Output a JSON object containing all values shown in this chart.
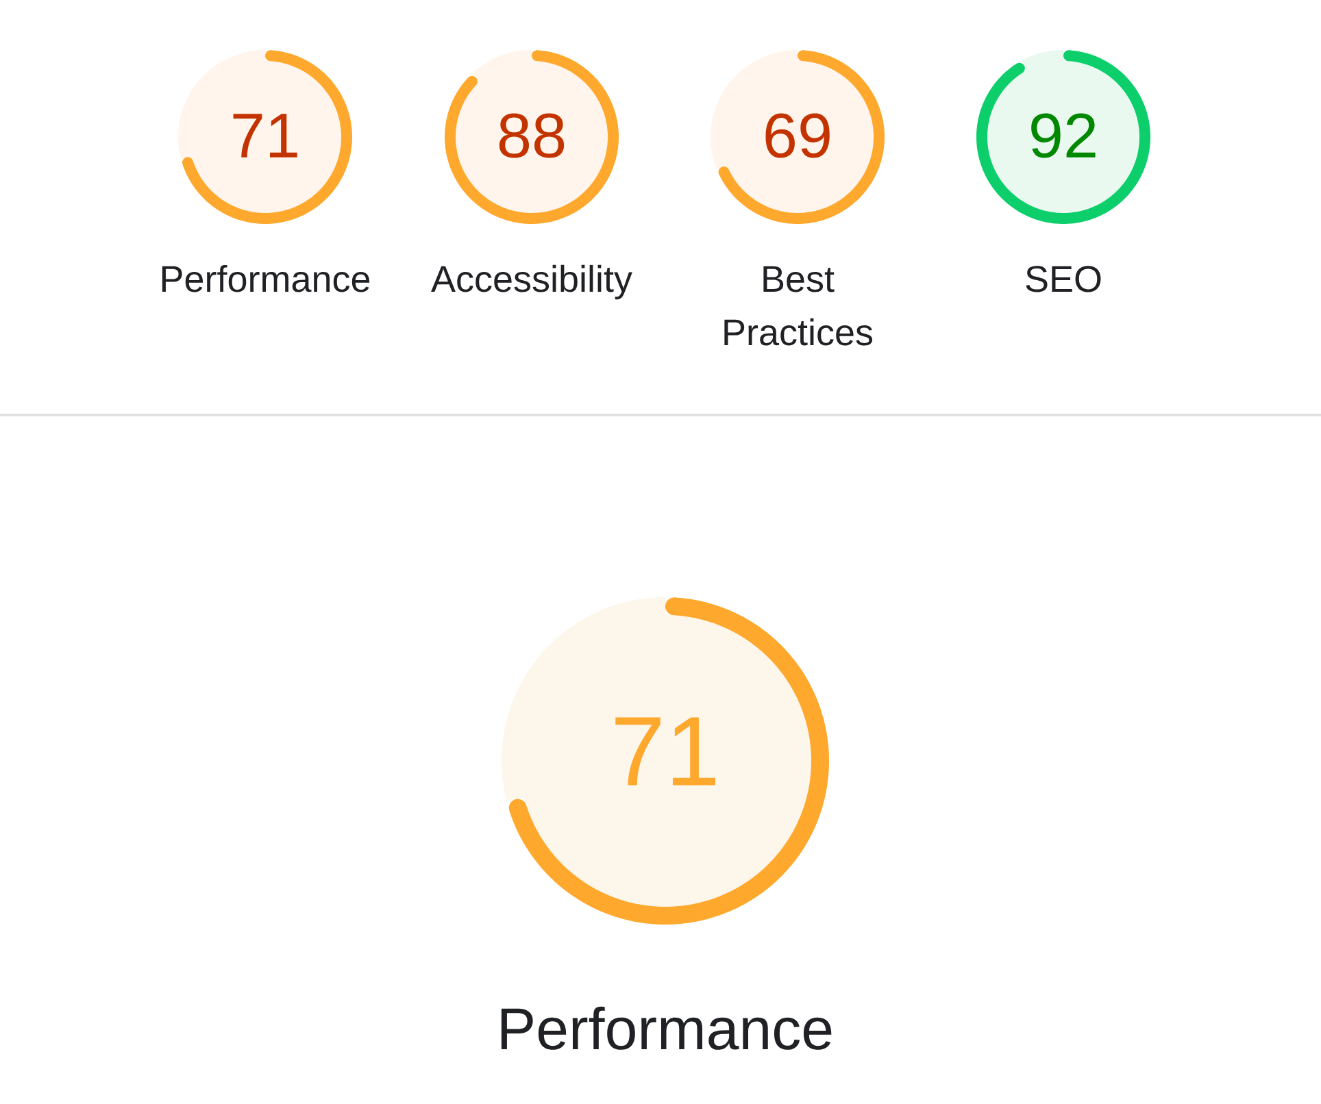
{
  "chart_data": [
    {
      "type": "donut",
      "title": "Performance",
      "categories": [
        null,
        null
      ],
      "values": [
        71,
        29
      ],
      "colors": [
        "#ffa82e",
        "#fff5ec"
      ],
      "value_labels": [
        "71",
        null
      ]
    },
    {
      "type": "donut",
      "title": "Accessibility",
      "categories": [
        null,
        null
      ],
      "values": [
        88,
        12
      ],
      "colors": [
        "#ffa82e",
        "#fff5ec"
      ],
      "value_labels": [
        "88",
        null
      ]
    },
    {
      "type": "donut",
      "title": "Best Practices",
      "categories": [
        null,
        null
      ],
      "values": [
        69,
        31
      ],
      "colors": [
        "#ffa82e",
        "#fff5ec"
      ],
      "value_labels": [
        "69",
        null
      ]
    },
    {
      "type": "donut",
      "title": "SEO",
      "categories": [
        null,
        null
      ],
      "values": [
        92,
        8
      ],
      "colors": [
        "#0ccf6b",
        "#e9f9f0"
      ],
      "value_labels": [
        "92",
        null
      ]
    },
    {
      "type": "donut",
      "title": "Performance",
      "categories": [
        null,
        null
      ],
      "values": [
        71,
        29
      ],
      "colors": [
        "#ffa82e",
        "#fdf6ea"
      ],
      "value_labels": [
        "71",
        null
      ]
    }
  ]
}
